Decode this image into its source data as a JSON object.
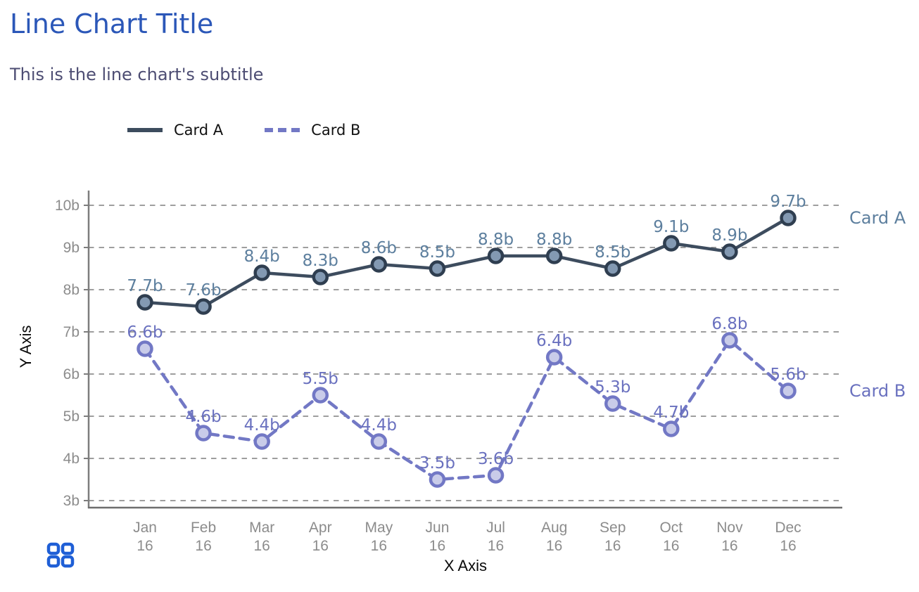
{
  "header": {
    "title": "Line Chart Title",
    "subtitle": "This is the line chart's subtitle",
    "title_color": "#2b57b8",
    "subtitle_color": "#4d4d73"
  },
  "legend": {
    "items": [
      {
        "label": "Card A",
        "style": "solid",
        "color": "#3d4c5e"
      },
      {
        "label": "Card B",
        "style": "dashed",
        "color": "#7278c5"
      }
    ]
  },
  "chart_data": {
    "type": "line",
    "title": "Line Chart Title",
    "subtitle": "This is the line chart's subtitle",
    "xlabel": "X Axis",
    "ylabel": "Y Axis",
    "categories": [
      "Jan 16",
      "Feb 16",
      "Mar 16",
      "Apr 16",
      "May 16",
      "Jun 16",
      "Jul 16",
      "Aug 16",
      "Sep 16",
      "Oct 16",
      "Nov 16",
      "Dec 16"
    ],
    "series": [
      {
        "name": "Card A",
        "values": [
          7.7,
          7.6,
          8.4,
          8.3,
          8.6,
          8.5,
          8.8,
          8.8,
          8.5,
          9.1,
          8.9,
          9.7
        ],
        "point_labels": [
          "7.7b",
          "7.6b",
          "8.4b",
          "8.3b",
          "8.6b",
          "8.5b",
          "8.8b",
          "8.8b",
          "8.5b",
          "9.1b",
          "8.9b",
          "9.7b"
        ],
        "line_style": "solid",
        "line_color": "#3d4c5e",
        "marker_fill": "#8399b2",
        "marker_stroke": "#2f3e50",
        "label_color": "#5d7f9e"
      },
      {
        "name": "Card B",
        "values": [
          6.6,
          4.6,
          4.4,
          5.5,
          4.4,
          3.5,
          3.6,
          6.4,
          5.3,
          4.7,
          6.8,
          5.6
        ],
        "point_labels": [
          "6.6b",
          "4.6b",
          "4.4b",
          "5.5b",
          "4.4b",
          "3.5b",
          "3.6b",
          "6.4b",
          "5.3b",
          "4.7b",
          "6.8b",
          "5.6b"
        ],
        "line_style": "dashed",
        "line_color": "#7278c5",
        "marker_fill": "#c9cce9",
        "marker_stroke": "#7278c5",
        "label_color": "#6a71bf"
      }
    ],
    "ylim": [
      3,
      10
    ],
    "ytick_labels": [
      "3b",
      "4b",
      "5b",
      "6b",
      "7b",
      "8b",
      "9b",
      "10b"
    ],
    "grid": "horizontal-dashed",
    "legend_position": "top",
    "grid_color": "#9e9e9e",
    "axis_color": "#7d7d7d",
    "bottom_axis_color": "#6e6e6e",
    "tick_label_color": "#8c8c8c",
    "axis_title_color": "#0a0a0a"
  },
  "footer": {
    "grid_icon": "grid-apps-icon",
    "grid_icon_color": "#1f5fd6"
  }
}
